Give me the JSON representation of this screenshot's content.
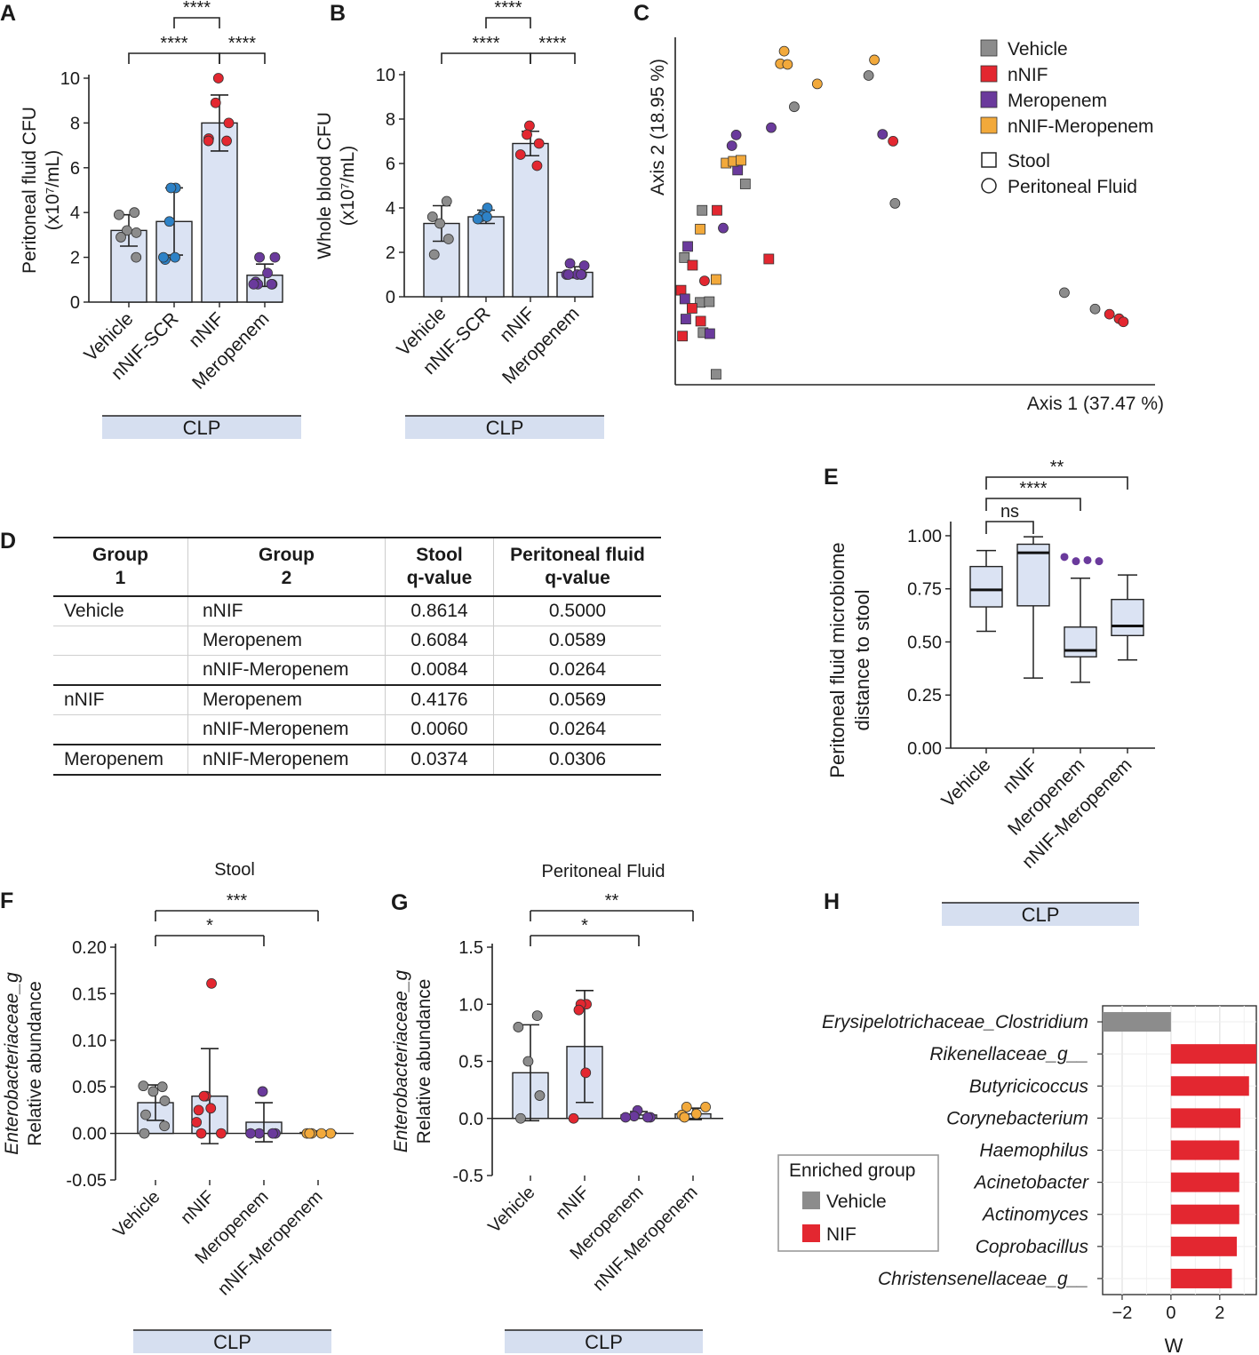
{
  "panel_labels": [
    "A",
    "B",
    "C",
    "D",
    "E",
    "F",
    "G",
    "H"
  ],
  "colors": {
    "vehicle": "#8c8c8c",
    "nnif": "#e32730",
    "meropenem": "#6a3a9c",
    "combo": "#f2a93b",
    "scr": "#2d82c7",
    "bar_fill": "#dbe3f3",
    "clp_band": "#d6dff0"
  },
  "clp_label": "CLP",
  "chart_data": [
    {
      "id": "A",
      "type": "bar",
      "ylabel_line1": "Peritoneal fluid CFU",
      "ylabel_line2": "(x10⁷/mL)",
      "ylim": [
        0,
        10
      ],
      "yticks": [
        0,
        2,
        4,
        6,
        8,
        10
      ],
      "categories": [
        "Vehicle",
        "nNIF-SCR",
        "nNIF",
        "Meropenem"
      ],
      "means": [
        3.2,
        3.6,
        8.0,
        1.2
      ],
      "sd": [
        0.7,
        1.5,
        1.25,
        0.5
      ],
      "points": [
        [
          4.0,
          3.9,
          3.2,
          3.1,
          2.9,
          2.0
        ],
        [
          5.1,
          5.1,
          3.6,
          2.0,
          1.9,
          2.0
        ],
        [
          10.0,
          8.9,
          8.0,
          7.3,
          7.2,
          7.2
        ],
        [
          2.0,
          2.0,
          1.3,
          0.9,
          0.8,
          0.8,
          0.8,
          0.8
        ]
      ],
      "point_colors": [
        "vehicle",
        "scr",
        "nnif",
        "meropenem"
      ],
      "sig": [
        {
          "from": 2,
          "to": 1,
          "label": "****"
        },
        {
          "from": 2,
          "to": 0,
          "label": "****"
        },
        {
          "from": 2,
          "to": 3,
          "label": "****"
        }
      ]
    },
    {
      "id": "B",
      "type": "bar",
      "ylabel_line1": "Whole blood CFU",
      "ylabel_line2": "(x10⁷/mL)",
      "ylim": [
        0,
        10
      ],
      "yticks": [
        0,
        2,
        4,
        6,
        8,
        10
      ],
      "categories": [
        "Vehicle",
        "nNIF-SCR",
        "nNIF",
        "Meropenem"
      ],
      "means": [
        3.3,
        3.6,
        6.9,
        1.1
      ],
      "sd": [
        0.8,
        0.3,
        0.55,
        0.25
      ],
      "points": [
        [
          4.3,
          3.6,
          3.3,
          2.6,
          1.9
        ],
        [
          4.0,
          3.7,
          3.6,
          3.6,
          3.5
        ],
        [
          7.7,
          7.3,
          6.9,
          6.4,
          5.9
        ],
        [
          1.5,
          1.4,
          1.0,
          1.0,
          1.0,
          1.0,
          1.0
        ]
      ],
      "point_colors": [
        "vehicle",
        "scr",
        "nnif",
        "meropenem"
      ],
      "sig": [
        {
          "from": 2,
          "to": 1,
          "label": "****"
        },
        {
          "from": 2,
          "to": 0,
          "label": "****"
        },
        {
          "from": 2,
          "to": 3,
          "label": "****"
        }
      ]
    },
    {
      "id": "C",
      "type": "scatter",
      "xlabel": "Axis 1 (37.47 %)",
      "ylabel": "Axis 2 (18.95 %)",
      "xlim": [
        0,
        1
      ],
      "ylim": [
        0,
        1
      ],
      "legend": [
        {
          "label": "Vehicle",
          "color": "vehicle"
        },
        {
          "label": "nNIF",
          "color": "nnif"
        },
        {
          "label": "Meropenem",
          "color": "meropenem"
        },
        {
          "label": "nNIF-Meropenem",
          "color": "combo"
        },
        {
          "label": "Stool",
          "shape": "square"
        },
        {
          "label": "Peritoneal Fluid",
          "shape": "circle"
        }
      ],
      "points": [
        {
          "x": 0.227,
          "y": 0.96,
          "g": "combo",
          "s": "circle"
        },
        {
          "x": 0.219,
          "y": 0.924,
          "g": "combo",
          "s": "circle"
        },
        {
          "x": 0.234,
          "y": 0.922,
          "g": "combo",
          "s": "circle"
        },
        {
          "x": 0.415,
          "y": 0.935,
          "g": "combo",
          "s": "circle"
        },
        {
          "x": 0.296,
          "y": 0.866,
          "g": "combo",
          "s": "circle"
        },
        {
          "x": 0.403,
          "y": 0.89,
          "g": "vehicle",
          "s": "circle"
        },
        {
          "x": 0.248,
          "y": 0.8,
          "g": "vehicle",
          "s": "circle"
        },
        {
          "x": 0.2,
          "y": 0.74,
          "g": "meropenem",
          "s": "circle"
        },
        {
          "x": 0.127,
          "y": 0.719,
          "g": "meropenem",
          "s": "circle"
        },
        {
          "x": 0.118,
          "y": 0.688,
          "g": "meropenem",
          "s": "circle"
        },
        {
          "x": 0.432,
          "y": 0.721,
          "g": "meropenem",
          "s": "circle"
        },
        {
          "x": 0.454,
          "y": 0.701,
          "g": "nnif",
          "s": "circle"
        },
        {
          "x": 0.458,
          "y": 0.522,
          "g": "vehicle",
          "s": "circle"
        },
        {
          "x": 0.1,
          "y": 0.451,
          "g": "meropenem",
          "s": "circle"
        },
        {
          "x": 0.061,
          "y": 0.299,
          "g": "nnif",
          "s": "circle"
        },
        {
          "x": 0.811,
          "y": 0.265,
          "g": "vehicle",
          "s": "circle"
        },
        {
          "x": 0.875,
          "y": 0.218,
          "g": "vehicle",
          "s": "circle"
        },
        {
          "x": 0.905,
          "y": 0.203,
          "g": "nnif",
          "s": "circle"
        },
        {
          "x": 0.925,
          "y": 0.19,
          "g": "nnif",
          "s": "circle"
        },
        {
          "x": 0.934,
          "y": 0.181,
          "g": "nnif",
          "s": "circle"
        },
        {
          "x": 0.13,
          "y": 0.618,
          "g": "meropenem",
          "s": "square"
        },
        {
          "x": 0.106,
          "y": 0.638,
          "g": "combo",
          "s": "square"
        },
        {
          "x": 0.121,
          "y": 0.643,
          "g": "combo",
          "s": "square"
        },
        {
          "x": 0.137,
          "y": 0.646,
          "g": "combo",
          "s": "square"
        },
        {
          "x": 0.146,
          "y": 0.578,
          "g": "vehicle",
          "s": "square"
        },
        {
          "x": 0.056,
          "y": 0.502,
          "g": "vehicle",
          "s": "square"
        },
        {
          "x": 0.087,
          "y": 0.502,
          "g": "nnif",
          "s": "square"
        },
        {
          "x": 0.052,
          "y": 0.448,
          "g": "combo",
          "s": "square"
        },
        {
          "x": 0.195,
          "y": 0.362,
          "g": "nnif",
          "s": "square"
        },
        {
          "x": 0.026,
          "y": 0.398,
          "g": "meropenem",
          "s": "square"
        },
        {
          "x": 0.019,
          "y": 0.366,
          "g": "vehicle",
          "s": "square"
        },
        {
          "x": 0.036,
          "y": 0.344,
          "g": "nnif",
          "s": "square"
        },
        {
          "x": 0.085,
          "y": 0.303,
          "g": "combo",
          "s": "square"
        },
        {
          "x": 0.012,
          "y": 0.272,
          "g": "nnif",
          "s": "square"
        },
        {
          "x": 0.02,
          "y": 0.247,
          "g": "meropenem",
          "s": "square"
        },
        {
          "x": 0.052,
          "y": 0.237,
          "g": "vehicle",
          "s": "square"
        },
        {
          "x": 0.071,
          "y": 0.239,
          "g": "vehicle",
          "s": "square"
        },
        {
          "x": 0.035,
          "y": 0.22,
          "g": "nnif",
          "s": "square"
        },
        {
          "x": 0.022,
          "y": 0.189,
          "g": "meropenem",
          "s": "square"
        },
        {
          "x": 0.053,
          "y": 0.183,
          "g": "nnif",
          "s": "square"
        },
        {
          "x": 0.058,
          "y": 0.15,
          "g": "vehicle",
          "s": "square"
        },
        {
          "x": 0.015,
          "y": 0.14,
          "g": "nnif",
          "s": "square"
        },
        {
          "x": 0.072,
          "y": 0.147,
          "g": "meropenem",
          "s": "square"
        },
        {
          "x": 0.085,
          "y": 0.03,
          "g": "vehicle",
          "s": "square"
        }
      ]
    },
    {
      "id": "E",
      "type": "box",
      "ylabel_line1": "Peritoneal fluid microbiome",
      "ylabel_line2": "distance to stool",
      "ylim": [
        0,
        1.05
      ],
      "yticks": [
        0.0,
        0.25,
        0.5,
        0.75,
        1.0
      ],
      "ytick_labels": [
        "0.00",
        "0.25",
        "0.50",
        "0.75",
        "1.00"
      ],
      "categories": [
        "Vehicle",
        "nNIF",
        "Meropenem",
        "nNIF-Meropenem"
      ],
      "boxes": [
        {
          "min": 0.55,
          "q1": 0.665,
          "median": 0.745,
          "q3": 0.855,
          "max": 0.93,
          "outliers": []
        },
        {
          "min": 0.33,
          "q1": 0.67,
          "median": 0.92,
          "q3": 0.96,
          "max": 0.995,
          "outliers": []
        },
        {
          "min": 0.31,
          "q1": 0.43,
          "median": 0.46,
          "q3": 0.57,
          "max": 0.8,
          "outliers": [
            0.9,
            0.88,
            0.885,
            0.88
          ]
        },
        {
          "min": 0.415,
          "q1": 0.53,
          "median": 0.575,
          "q3": 0.7,
          "max": 0.815,
          "outliers": []
        }
      ],
      "sig": [
        {
          "from": 0,
          "to": 1,
          "label": "ns"
        },
        {
          "from": 0,
          "to": 2,
          "label": "****"
        },
        {
          "from": 0,
          "to": 3,
          "label": "**"
        }
      ]
    },
    {
      "id": "F",
      "type": "bar",
      "title": "Stool",
      "ylabel_line1": "Relative abundance",
      "ylabel_italic": "Enterobacteriaceae_g",
      "ylim": [
        -0.05,
        0.2
      ],
      "yticks": [
        -0.05,
        0.0,
        0.05,
        0.1,
        0.15,
        0.2
      ],
      "ytick_labels": [
        "-0.05",
        "0.00",
        "0.05",
        "0.10",
        "0.15",
        "0.20"
      ],
      "categories": [
        "Vehicle",
        "nNIF",
        "Meropenem",
        "nNIF-Meropenem"
      ],
      "means": [
        0.033,
        0.04,
        0.012,
        0.001
      ],
      "sd": [
        0.019,
        0.051,
        0.021,
        0.0015
      ],
      "points": [
        [
          0.05,
          0.051,
          0.045,
          0.035,
          0.02,
          0.008,
          0.0
        ],
        [
          0.161,
          0.04,
          0.04,
          0.027,
          0.025,
          0.012,
          0.0,
          0.0
        ],
        [
          0.045,
          0.0,
          0.0,
          0.0,
          0.0
        ],
        [
          0.0,
          0.0,
          0.0,
          0.0,
          0.0
        ]
      ],
      "point_colors": [
        "vehicle",
        "nnif",
        "meropenem",
        "combo"
      ],
      "sig": [
        {
          "from": 0,
          "to": 2,
          "label": "*"
        },
        {
          "from": 0,
          "to": 3,
          "label": "***"
        }
      ]
    },
    {
      "id": "G",
      "type": "bar",
      "title": "Peritoneal Fluid",
      "ylabel_line1": "Relative abundance",
      "ylabel_italic": "Enterobacteriaceae_g",
      "ylim": [
        -0.5,
        1.5
      ],
      "yticks": [
        -0.5,
        0.0,
        0.5,
        1.0,
        1.5
      ],
      "ytick_labels": [
        "-0.5",
        "0.0",
        "0.5",
        "1.0",
        "1.5"
      ],
      "categories": [
        "Vehicle",
        "nNIF",
        "Meropenem",
        "nNIF-Meropenem"
      ],
      "means": [
        0.4,
        0.63,
        0.03,
        0.04
      ],
      "sd": [
        0.42,
        0.49,
        0.03,
        0.05
      ],
      "points": [
        [
          0.9,
          0.8,
          0.5,
          0.2,
          0.0
        ],
        [
          1.0,
          1.0,
          0.95,
          0.4,
          0.0
        ],
        [
          0.07,
          0.02,
          0.01,
          0.01,
          0.01
        ],
        [
          0.1,
          0.1,
          0.04,
          0.03,
          0.01
        ]
      ],
      "point_colors": [
        "vehicle",
        "nnif",
        "meropenem",
        "combo"
      ],
      "sig": [
        {
          "from": 0,
          "to": 2,
          "label": "*"
        },
        {
          "from": 0,
          "to": 3,
          "label": "**"
        }
      ]
    },
    {
      "id": "H",
      "type": "hbar",
      "xlabel": "W",
      "xlim": [
        -2.8,
        3.5
      ],
      "xticks": [
        -2,
        0,
        2
      ],
      "categories": [
        "Erysipelotrichaceae_Clostridium",
        "Rikenellaceae_g__",
        "Butyricicoccus",
        "Corynebacterium",
        "Haemophilus",
        "Acinetobacter",
        "Actinomyces",
        "Coprobacillus",
        "Christensenellaceae_g__"
      ],
      "values": [
        -2.8,
        3.6,
        3.2,
        2.85,
        2.8,
        2.8,
        2.8,
        2.7,
        2.5
      ],
      "groups": [
        "vehicle",
        "nnif",
        "nnif",
        "nnif",
        "nnif",
        "nnif",
        "nnif",
        "nnif",
        "nnif"
      ],
      "legend_title": "Enriched group",
      "legend": [
        {
          "label": "Vehicle",
          "color": "vehicle"
        },
        {
          "label": "NIF",
          "color": "nnif"
        }
      ]
    }
  ],
  "table": {
    "headers": [
      [
        "Group",
        "1"
      ],
      [
        "Group",
        "2"
      ],
      [
        "Stool",
        "q-value"
      ],
      [
        "Peritoneal fluid",
        "q-value"
      ]
    ],
    "rows": [
      [
        "Vehicle",
        "nNIF",
        "0.8614",
        "0.5000"
      ],
      [
        "",
        "Meropenem",
        "0.6084",
        "0.0589"
      ],
      [
        "",
        "nNIF-Meropenem",
        "0.0084",
        "0.0264"
      ],
      [
        "nNIF",
        "Meropenem",
        "0.4176",
        "0.0569"
      ],
      [
        "",
        "nNIF-Meropenem",
        "0.0060",
        "0.0264"
      ],
      [
        "Meropenem",
        "nNIF-Meropenem",
        "0.0374",
        "0.0306"
      ]
    ]
  }
}
